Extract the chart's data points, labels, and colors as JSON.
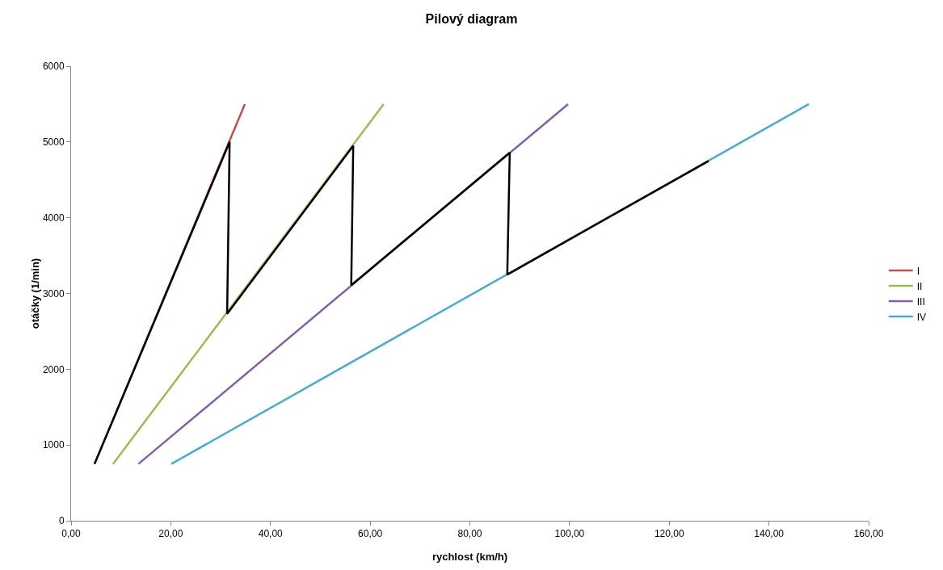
{
  "chart_data": {
    "type": "line",
    "title": "Pilový diagram",
    "xlabel": "rychlost (km/h)",
    "ylabel": "otáčky (1/min)",
    "series": [
      {
        "name": "I",
        "color": "#c0504d",
        "x": [
          4.7,
          34.85
        ],
        "values": [
          750,
          5500
        ]
      },
      {
        "name": "II",
        "color": "#9bbb59",
        "x": [
          8.4,
          62.7
        ],
        "values": [
          750,
          5500
        ]
      },
      {
        "name": "III",
        "color": "#8064a2",
        "x": [
          13.5,
          99.7
        ],
        "values": [
          750,
          5500
        ]
      },
      {
        "name": "IV",
        "color": "#4bacc6",
        "x": [
          20.1,
          148
        ],
        "values": [
          750,
          5500
        ]
      },
      {
        "color": "#000000",
        "x": [
          4.7,
          31.8,
          31.3,
          56.6,
          56.2,
          88,
          87.5,
          127.9
        ],
        "values": [
          750,
          5000,
          2730,
          4950,
          3110,
          4860,
          3250,
          4750
        ]
      }
    ],
    "xlim": [
      0,
      160
    ],
    "xticks": [
      {
        "value": 0,
        "label": "0,00"
      },
      {
        "value": 20,
        "label": "20,00"
      },
      {
        "value": 40,
        "label": "40,00"
      },
      {
        "value": 60,
        "label": "60,00"
      },
      {
        "value": 80,
        "label": "80,00"
      },
      {
        "value": 100,
        "label": "100,00"
      },
      {
        "value": 120,
        "label": "120,00"
      },
      {
        "value": 140,
        "label": "140,00"
      },
      {
        "value": 160,
        "label": "160,00"
      }
    ],
    "ylim": [
      0,
      6000
    ],
    "yticks": [
      0,
      1000,
      2000,
      3000,
      4000,
      5000,
      6000
    ],
    "grid": false,
    "legend": "right",
    "marker": "none",
    "line_style": "solid"
  }
}
